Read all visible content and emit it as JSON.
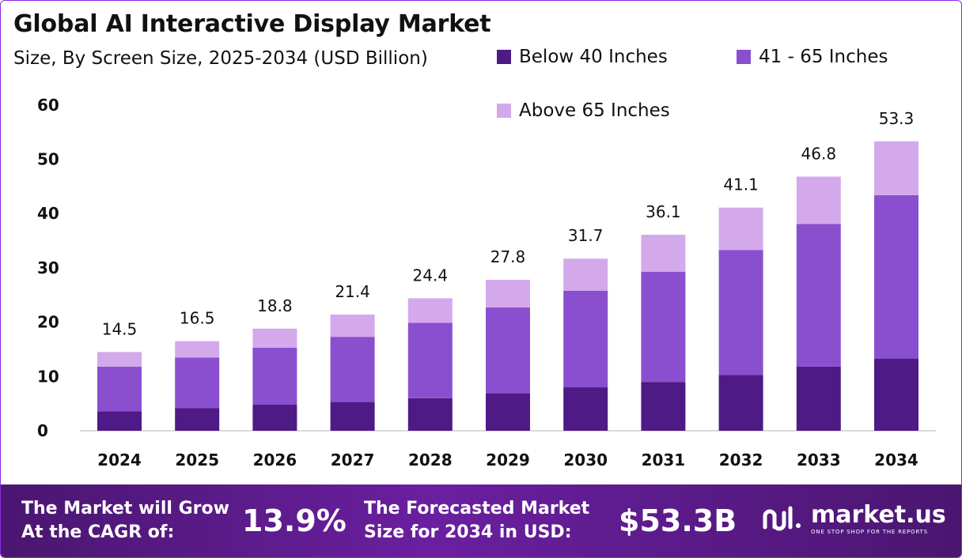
{
  "chart_data": {
    "type": "bar",
    "stacked": true,
    "title": "Global AI Interactive Display Market",
    "subtitle": "Size, By Screen Size, 2025-2034 (USD Billion)",
    "categories": [
      "2024",
      "2025",
      "2026",
      "2027",
      "2028",
      "2029",
      "2030",
      "2031",
      "2032",
      "2033",
      "2034"
    ],
    "series": [
      {
        "name": "Below 40 Inches",
        "color": "#4e1a86",
        "values": [
          3.6,
          4.2,
          4.8,
          5.3,
          6.0,
          6.9,
          8.0,
          9.0,
          10.3,
          11.8,
          13.3
        ]
      },
      {
        "name": "41 - 65 Inches",
        "color": "#8a4fcf",
        "values": [
          8.2,
          9.3,
          10.5,
          12.0,
          13.9,
          15.8,
          17.8,
          20.3,
          23.0,
          26.3,
          30.1
        ]
      },
      {
        "name": "Above 65 Inches",
        "color": "#d4a9ec",
        "values": [
          2.7,
          3.0,
          3.5,
          4.1,
          4.5,
          5.1,
          5.9,
          6.8,
          7.8,
          8.7,
          9.9
        ]
      }
    ],
    "totals": [
      "14.5",
      "16.5",
      "18.8",
      "21.4",
      "24.4",
      "27.8",
      "31.7",
      "36.1",
      "41.1",
      "46.8",
      "53.3"
    ],
    "ylim": [
      0,
      60
    ],
    "yticks": [
      0,
      10,
      20,
      30,
      40,
      50,
      60
    ],
    "grid": false,
    "legend_position": "top-right"
  },
  "footer": {
    "cagr_label": "The Market will Grow\nAt the CAGR of:",
    "cagr_value": "13.9%",
    "forecast_label": "The Forecasted Market\nSize for 2034 in USD:",
    "forecast_value": "$53.3B",
    "brand_name": "market.us",
    "brand_tagline": "ONE STOP SHOP FOR THE REPORTS"
  }
}
